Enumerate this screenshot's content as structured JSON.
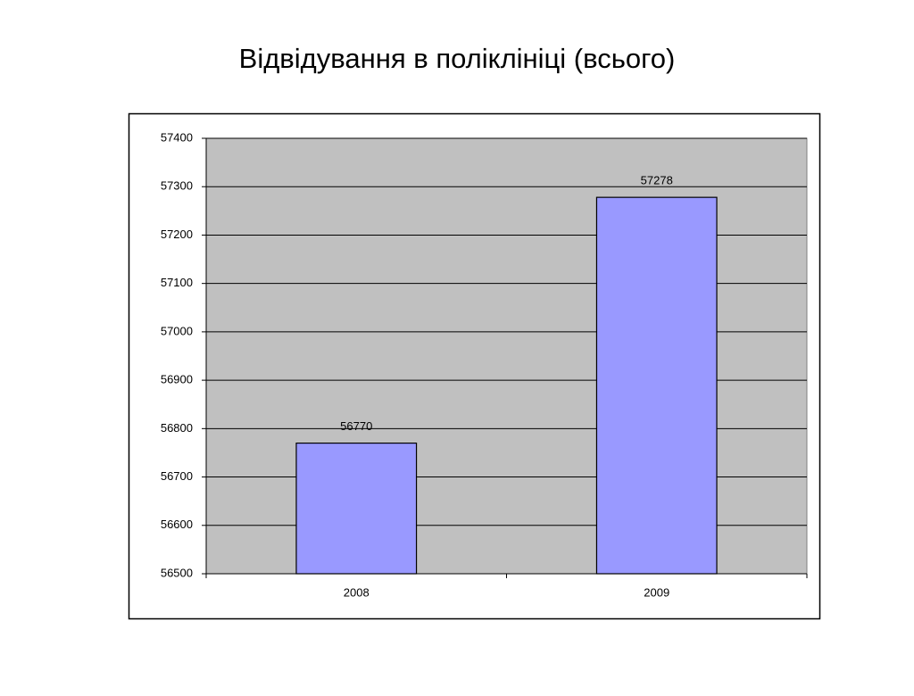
{
  "chart_data": {
    "type": "bar",
    "title": "Відвідування в поліклініці (всього)",
    "categories": [
      "2008",
      "2009"
    ],
    "values": [
      56770,
      57278
    ],
    "color": "#9999ff",
    "plot_background": "#c0c0c0",
    "ylim": [
      56500,
      57400
    ],
    "yticks": [
      56500,
      56600,
      56700,
      56800,
      56900,
      57000,
      57100,
      57200,
      57300,
      57400
    ],
    "grid": true
  }
}
